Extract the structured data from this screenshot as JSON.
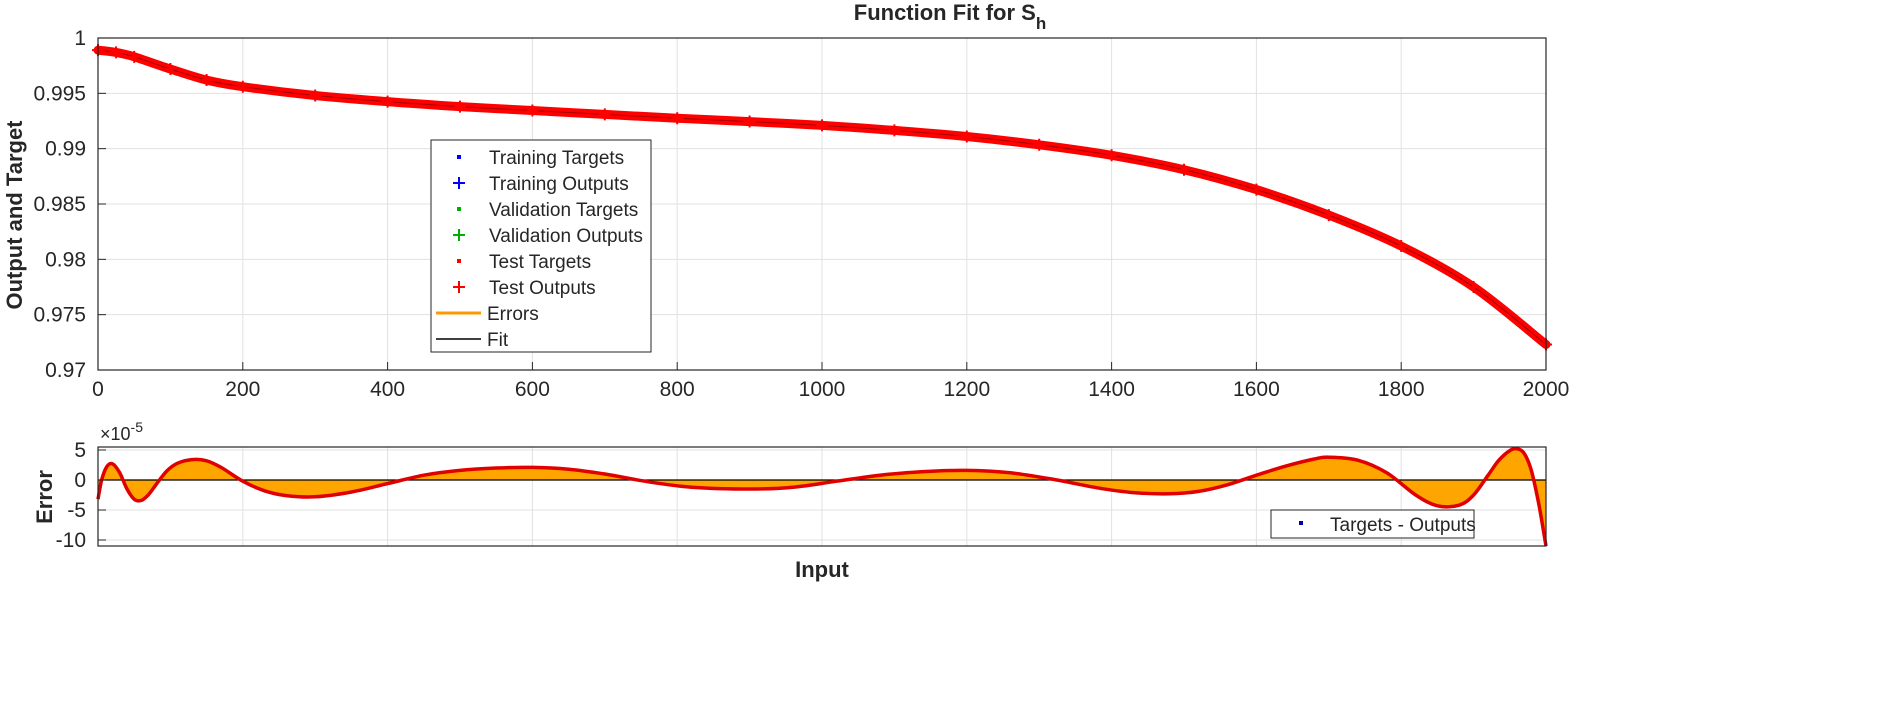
{
  "chart_data": [
    {
      "type": "line",
      "title_main": "Function Fit for S",
      "title_sub": "h",
      "ylabel": "Output and Target",
      "xlim": [
        0,
        2000
      ],
      "ylim": [
        0.97,
        1.0
      ],
      "xticks": [
        0,
        200,
        400,
        600,
        800,
        1000,
        1200,
        1400,
        1600,
        1800,
        2000
      ],
      "yticks": [
        0.97,
        0.975,
        0.98,
        0.985,
        0.99,
        0.995,
        1
      ],
      "ytick_labels": [
        "0.97",
        "0.975",
        "0.98",
        "0.985",
        "0.99",
        "0.995",
        "1"
      ],
      "grid": true,
      "legend_location": "middle-left",
      "legend": [
        {
          "label": "Training Targets",
          "marker": "dot",
          "color": "#0000ff"
        },
        {
          "label": "Training Outputs",
          "marker": "plus",
          "color": "#0000ff"
        },
        {
          "label": "Validation Targets",
          "marker": "dot",
          "color": "#00b000"
        },
        {
          "label": "Validation Outputs",
          "marker": "plus",
          "color": "#00b000"
        },
        {
          "label": "Test Targets",
          "marker": "dot",
          "color": "#ff0000"
        },
        {
          "label": "Test Outputs",
          "marker": "plus",
          "color": "#ff0000"
        },
        {
          "label": "Errors",
          "marker": "line",
          "color": "#ff9900"
        },
        {
          "label": "Fit",
          "marker": "line",
          "color": "#000000"
        }
      ],
      "series": [
        {
          "name": "Test Outputs",
          "color": "#ff0000",
          "x": [
            0,
            25,
            50,
            100,
            150,
            200,
            300,
            400,
            500,
            600,
            700,
            800,
            900,
            1000,
            1100,
            1200,
            1300,
            1400,
            1500,
            1600,
            1700,
            1800,
            1900,
            2000
          ],
          "y": [
            0.9989,
            0.9987,
            0.9983,
            0.9972,
            0.9962,
            0.9956,
            0.9948,
            0.99425,
            0.9938,
            0.99345,
            0.9931,
            0.99275,
            0.99245,
            0.9921,
            0.99165,
            0.9911,
            0.99035,
            0.9894,
            0.9881,
            0.9863,
            0.984,
            0.9812,
            0.9775,
            0.9723
          ]
        }
      ]
    },
    {
      "type": "area",
      "ylabel": "Error",
      "xlabel": "Input",
      "exponent_label": "×10",
      "exponent_power": "-5",
      "xlim": [
        0,
        2000
      ],
      "ylim": [
        -11,
        5.5
      ],
      "yticks": [
        -10,
        -5,
        0,
        5
      ],
      "ytick_labels": [
        "-10",
        "-5",
        "0",
        "5"
      ],
      "grid": true,
      "legend_location": "bottom-right",
      "legend": [
        {
          "label": "Targets - Outputs",
          "marker": "dot",
          "color": "#0000aa"
        }
      ],
      "series": [
        {
          "name": "Targets - Outputs",
          "color": "#e00000",
          "fill": "#ffa500",
          "x": [
            0,
            5,
            12,
            20,
            30,
            40,
            50,
            60,
            70,
            80,
            95,
            110,
            130,
            150,
            170,
            200,
            230,
            260,
            300,
            350,
            400,
            450,
            500,
            550,
            600,
            650,
            700,
            760,
            820,
            900,
            960,
            1020,
            1080,
            1140,
            1200,
            1260,
            1320,
            1380,
            1430,
            1480,
            1520,
            1560,
            1600,
            1640,
            1680,
            1700,
            1740,
            1780,
            1820,
            1850,
            1880,
            1900,
            1920,
            1935,
            1950,
            1960,
            1970,
            1980,
            1990,
            2000
          ],
          "y": [
            -3.2,
            0,
            2.2,
            2.7,
            1.2,
            -1.5,
            -3.2,
            -3.4,
            -2.4,
            -0.8,
            1.5,
            2.8,
            3.4,
            3.2,
            2.1,
            -0.2,
            -1.8,
            -2.6,
            -2.8,
            -2.0,
            -0.6,
            0.8,
            1.6,
            2.0,
            2.1,
            1.8,
            1.0,
            -0.3,
            -1.2,
            -1.5,
            -1.2,
            -0.2,
            0.8,
            1.4,
            1.6,
            1.2,
            0.1,
            -1.3,
            -2.1,
            -2.3,
            -1.9,
            -0.8,
            0.8,
            2.3,
            3.5,
            3.8,
            3.3,
            1.2,
            -2.5,
            -4.3,
            -4.2,
            -2.5,
            0.8,
            3.3,
            4.9,
            5.2,
            4.4,
            1.5,
            -4.0,
            -11.0
          ]
        }
      ]
    }
  ]
}
